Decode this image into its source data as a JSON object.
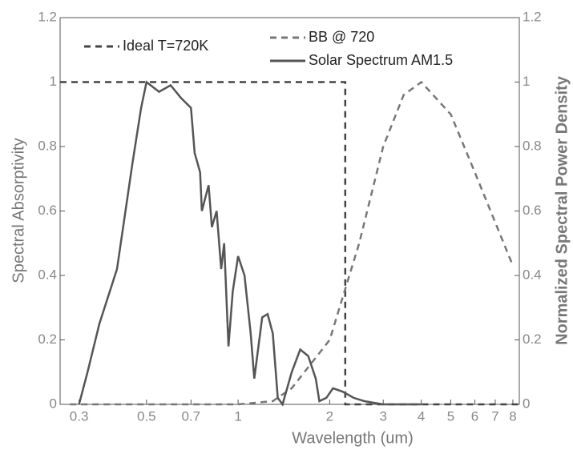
{
  "chart_data": {
    "type": "line",
    "xlabel": "Wavelength (um)",
    "ylabel": "Spectral Absorptivity",
    "y2label": "Normalized Spectral Power Density",
    "xscale": "log",
    "xlim": [
      0.26,
      8.4
    ],
    "xticks": [
      0.3,
      0.5,
      0.7,
      1,
      2,
      3,
      4,
      5,
      6,
      7,
      8
    ],
    "ylim": [
      0,
      1.2
    ],
    "yticks": [
      0,
      0.2,
      0.4,
      0.6,
      0.8,
      1,
      1.2
    ],
    "y2lim": [
      0,
      1.2
    ],
    "y2ticks": [
      0,
      0.2,
      0.4,
      0.6,
      0.8,
      1,
      1.2
    ],
    "series": [
      {
        "name": "Ideal T=720K",
        "color": "#444444",
        "dash": "8,6",
        "x": [
          0.26,
          2.25,
          2.25,
          8.4
        ],
        "values": [
          1,
          1,
          0,
          0
        ]
      },
      {
        "name": "BB @ 720",
        "color": "#777777",
        "dash": "8,6",
        "axis": "y2",
        "x": [
          0.28,
          1.0,
          1.3,
          1.5,
          2,
          2.5,
          3,
          3.5,
          4,
          5,
          6,
          8
        ],
        "values": [
          0,
          0,
          0.01,
          0.05,
          0.2,
          0.5,
          0.8,
          0.96,
          1.0,
          0.9,
          0.72,
          0.43
        ]
      },
      {
        "name": "Solar Spectrum AM1.5",
        "color": "#555555",
        "dash": "none",
        "axis": "y2",
        "x": [
          0.3,
          0.32,
          0.35,
          0.4,
          0.45,
          0.48,
          0.5,
          0.55,
          0.6,
          0.65,
          0.7,
          0.72,
          0.75,
          0.76,
          0.8,
          0.82,
          0.85,
          0.88,
          0.9,
          0.93,
          0.96,
          1.0,
          1.05,
          1.1,
          1.13,
          1.2,
          1.25,
          1.3,
          1.35,
          1.4,
          1.5,
          1.6,
          1.7,
          1.8,
          1.85,
          1.95,
          2.05,
          2.2,
          2.4,
          2.6,
          3,
          4
        ],
        "values": [
          0,
          0.1,
          0.25,
          0.42,
          0.75,
          0.92,
          1.0,
          0.97,
          0.99,
          0.95,
          0.92,
          0.78,
          0.72,
          0.6,
          0.68,
          0.55,
          0.6,
          0.42,
          0.5,
          0.18,
          0.35,
          0.46,
          0.4,
          0.22,
          0.08,
          0.27,
          0.28,
          0.22,
          0.02,
          0,
          0.1,
          0.17,
          0.15,
          0.08,
          0.01,
          0.02,
          0.05,
          0.04,
          0.02,
          0.01,
          0,
          0
        ]
      }
    ]
  }
}
